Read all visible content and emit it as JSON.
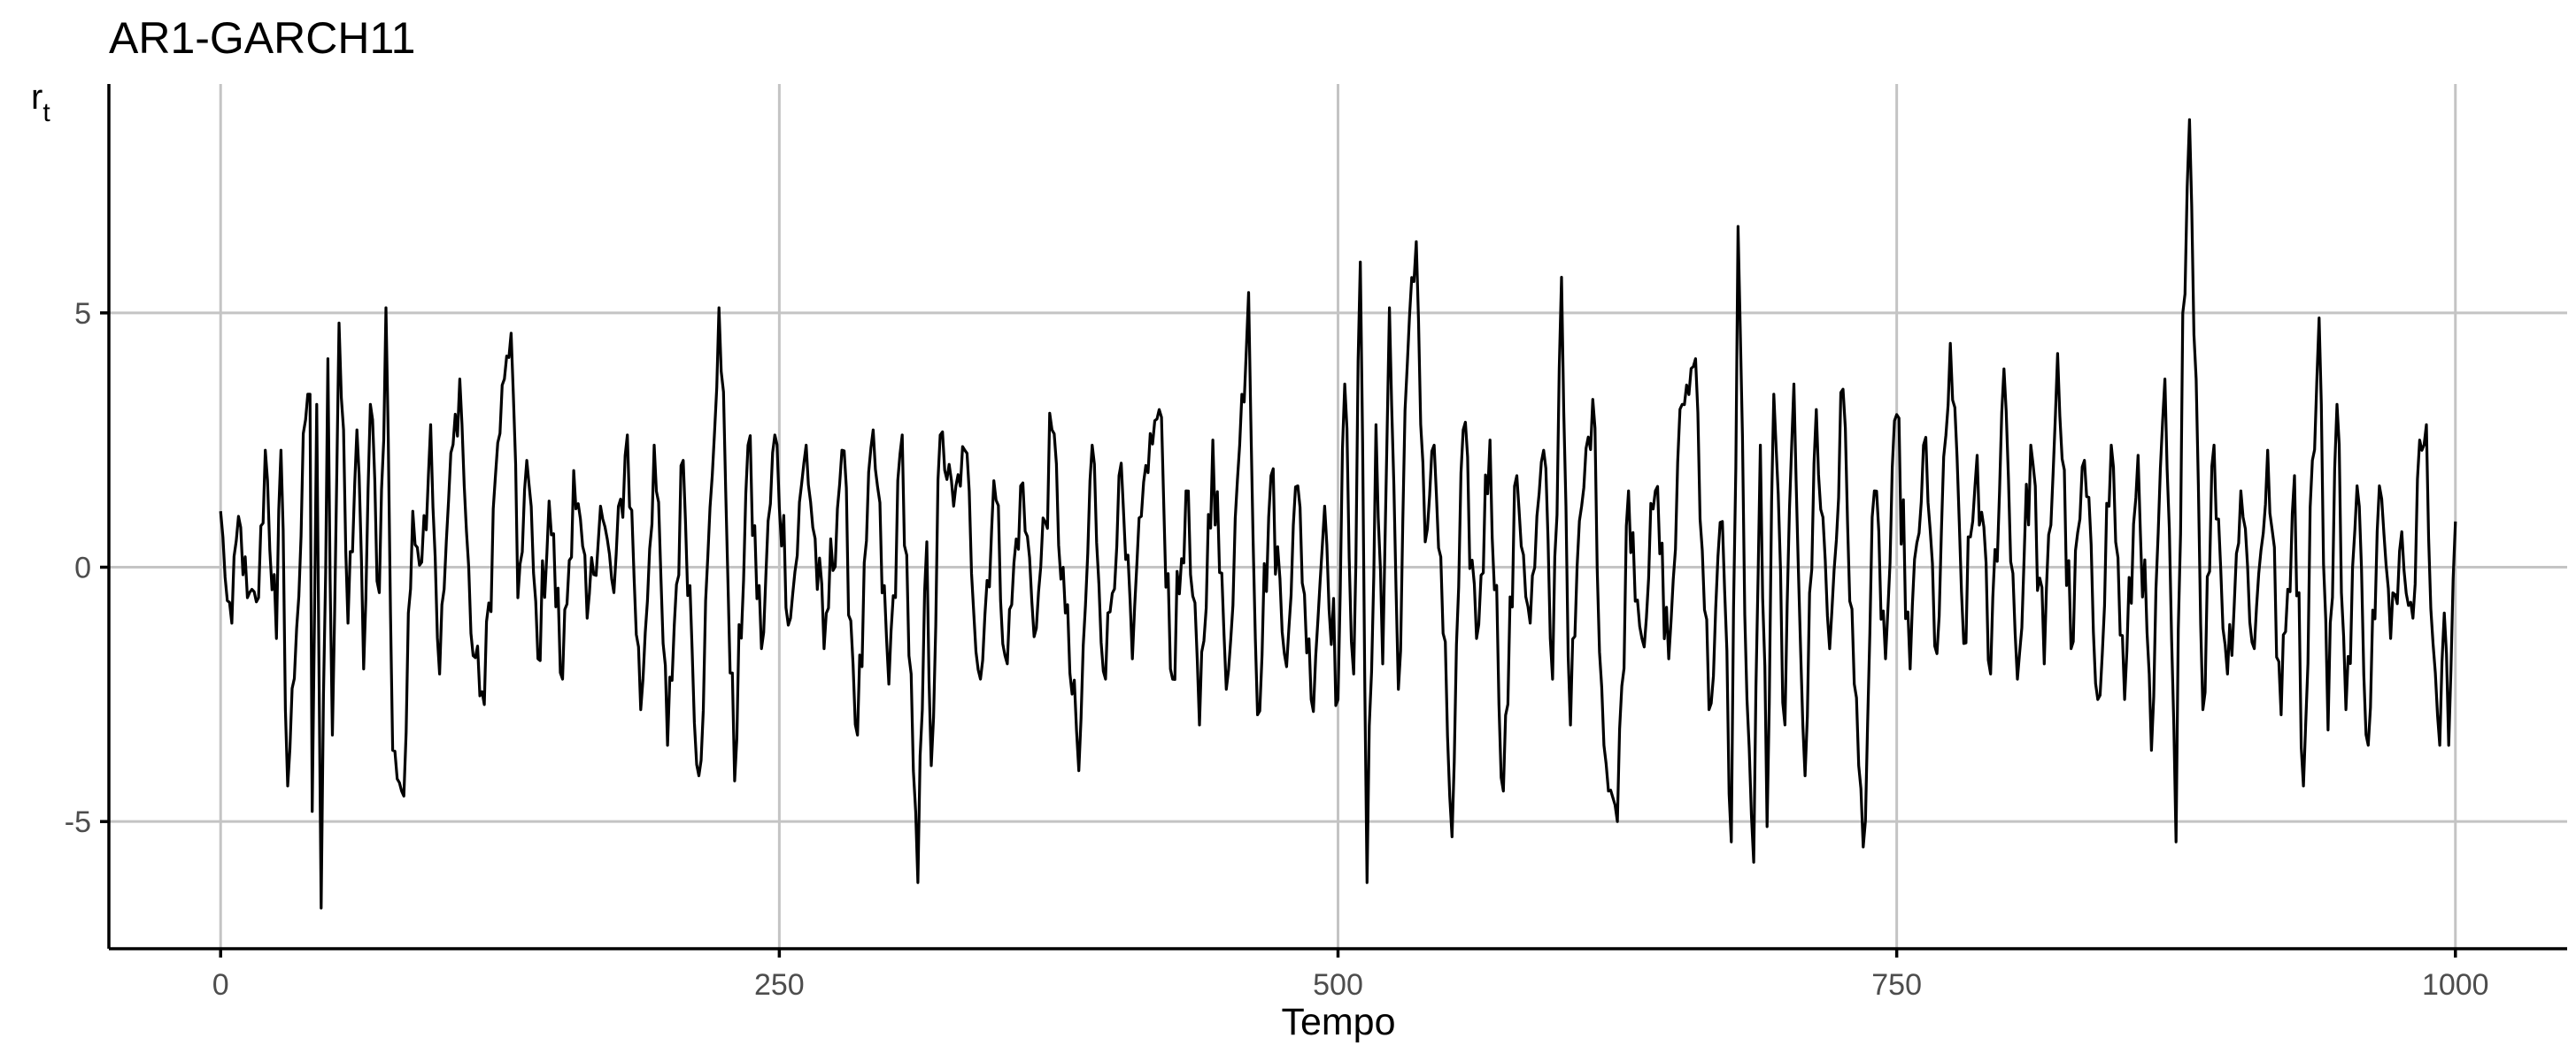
{
  "chart_data": {
    "type": "line",
    "title": "AR1-GARCH11",
    "xlabel": "Tempo",
    "ylabel": "r",
    "ylabel_subscript": "t",
    "xlim": [
      -50,
      1050
    ],
    "ylim": [
      -7.5,
      9.5
    ],
    "x_ticks": [
      0,
      250,
      500,
      750,
      1000
    ],
    "y_ticks": [
      -5,
      0,
      5
    ],
    "x_tick_labels": [
      "0",
      "250",
      "500",
      "750",
      "1000"
    ],
    "y_tick_labels": [
      "-5",
      "0",
      "5"
    ],
    "grid": true,
    "legend": "none",
    "line_color": "#000000",
    "n": 1000,
    "anchors": [
      {
        "x": 0,
        "y": 1.1
      },
      {
        "x": 2,
        "y": -0.2
      },
      {
        "x": 5,
        "y": -1.1
      },
      {
        "x": 8,
        "y": 1.0
      },
      {
        "x": 12,
        "y": -0.6
      },
      {
        "x": 17,
        "y": -0.6
      },
      {
        "x": 20,
        "y": 2.3
      },
      {
        "x": 25,
        "y": -1.4
      },
      {
        "x": 27,
        "y": 2.3
      },
      {
        "x": 30,
        "y": -4.3
      },
      {
        "x": 34,
        "y": -1.2
      },
      {
        "x": 38,
        "y": 2.9
      },
      {
        "x": 40,
        "y": 3.4
      },
      {
        "x": 41,
        "y": -4.8
      },
      {
        "x": 43,
        "y": 3.2
      },
      {
        "x": 45,
        "y": -6.7
      },
      {
        "x": 48,
        "y": 4.1
      },
      {
        "x": 50,
        "y": -3.3
      },
      {
        "x": 53,
        "y": 4.8
      },
      {
        "x": 57,
        "y": -1.1
      },
      {
        "x": 61,
        "y": 2.7
      },
      {
        "x": 64,
        "y": -2.0
      },
      {
        "x": 67,
        "y": 3.2
      },
      {
        "x": 71,
        "y": -0.5
      },
      {
        "x": 74,
        "y": 5.1
      },
      {
        "x": 77,
        "y": -3.6
      },
      {
        "x": 82,
        "y": -4.5
      },
      {
        "x": 86,
        "y": 1.1
      },
      {
        "x": 90,
        "y": 0.1
      },
      {
        "x": 94,
        "y": 2.8
      },
      {
        "x": 98,
        "y": -2.1
      },
      {
        "x": 102,
        "y": 1.3
      },
      {
        "x": 107,
        "y": 3.7
      },
      {
        "x": 112,
        "y": -1.3
      },
      {
        "x": 118,
        "y": -2.7
      },
      {
        "x": 123,
        "y": 1.8
      },
      {
        "x": 127,
        "y": 3.7
      },
      {
        "x": 130,
        "y": 4.6
      },
      {
        "x": 133,
        "y": -0.6
      },
      {
        "x": 137,
        "y": 2.1
      },
      {
        "x": 142,
        "y": -1.8
      },
      {
        "x": 147,
        "y": 1.3
      },
      {
        "x": 153,
        "y": -2.2
      },
      {
        "x": 158,
        "y": 1.9
      },
      {
        "x": 164,
        "y": -1.0
      },
      {
        "x": 170,
        "y": 1.2
      },
      {
        "x": 176,
        "y": -0.5
      },
      {
        "x": 182,
        "y": 2.6
      },
      {
        "x": 188,
        "y": -2.8
      },
      {
        "x": 194,
        "y": 2.4
      },
      {
        "x": 200,
        "y": -3.5
      },
      {
        "x": 207,
        "y": 2.1
      },
      {
        "x": 214,
        "y": -4.1
      },
      {
        "x": 220,
        "y": 1.8
      },
      {
        "x": 223,
        "y": 5.1
      },
      {
        "x": 226,
        "y": 1.5
      },
      {
        "x": 230,
        "y": -4.2
      },
      {
        "x": 236,
        "y": 2.4
      },
      {
        "x": 242,
        "y": -1.6
      },
      {
        "x": 248,
        "y": 2.6
      },
      {
        "x": 255,
        "y": -1.0
      },
      {
        "x": 262,
        "y": 2.4
      },
      {
        "x": 270,
        "y": -1.6
      },
      {
        "x": 278,
        "y": 2.3
      },
      {
        "x": 285,
        "y": -3.3
      },
      {
        "x": 292,
        "y": 2.7
      },
      {
        "x": 299,
        "y": -2.3
      },
      {
        "x": 305,
        "y": 2.6
      },
      {
        "x": 310,
        "y": -4.0
      },
      {
        "x": 312,
        "y": -6.2
      },
      {
        "x": 316,
        "y": 0.5
      },
      {
        "x": 318,
        "y": -3.9
      },
      {
        "x": 322,
        "y": 2.6
      },
      {
        "x": 328,
        "y": 1.2
      },
      {
        "x": 333,
        "y": 2.3
      },
      {
        "x": 340,
        "y": -2.2
      },
      {
        "x": 346,
        "y": 1.7
      },
      {
        "x": 352,
        "y": -1.9
      },
      {
        "x": 358,
        "y": 1.6
      },
      {
        "x": 365,
        "y": -1.2
      },
      {
        "x": 372,
        "y": 2.7
      },
      {
        "x": 378,
        "y": -0.9
      },
      {
        "x": 384,
        "y": -4.0
      },
      {
        "x": 390,
        "y": 2.4
      },
      {
        "x": 396,
        "y": -2.2
      },
      {
        "x": 402,
        "y": 1.8
      },
      {
        "x": 408,
        "y": -1.8
      },
      {
        "x": 414,
        "y": 2.0
      },
      {
        "x": 420,
        "y": 3.1
      },
      {
        "x": 426,
        "y": -2.2
      },
      {
        "x": 432,
        "y": 1.5
      },
      {
        "x": 438,
        "y": -3.1
      },
      {
        "x": 444,
        "y": 2.5
      },
      {
        "x": 450,
        "y": -2.4
      },
      {
        "x": 456,
        "y": 2.4
      },
      {
        "x": 460,
        "y": 5.4
      },
      {
        "x": 464,
        "y": -2.9
      },
      {
        "x": 470,
        "y": 1.8
      },
      {
        "x": 476,
        "y": -1.7
      },
      {
        "x": 482,
        "y": 1.6
      },
      {
        "x": 488,
        "y": -2.6
      },
      {
        "x": 494,
        "y": 1.2
      },
      {
        "x": 500,
        "y": -2.6
      },
      {
        "x": 503,
        "y": 3.6
      },
      {
        "x": 507,
        "y": -2.1
      },
      {
        "x": 510,
        "y": 6.0
      },
      {
        "x": 513,
        "y": -6.2
      },
      {
        "x": 517,
        "y": 2.8
      },
      {
        "x": 520,
        "y": -1.9
      },
      {
        "x": 523,
        "y": 5.1
      },
      {
        "x": 527,
        "y": -2.4
      },
      {
        "x": 531,
        "y": 4.0
      },
      {
        "x": 535,
        "y": 6.4
      },
      {
        "x": 539,
        "y": 0.5
      },
      {
        "x": 543,
        "y": 2.4
      },
      {
        "x": 547,
        "y": -1.3
      },
      {
        "x": 551,
        "y": -5.3
      },
      {
        "x": 556,
        "y": 2.7
      },
      {
        "x": 562,
        "y": -1.4
      },
      {
        "x": 568,
        "y": 2.5
      },
      {
        "x": 574,
        "y": -4.4
      },
      {
        "x": 580,
        "y": 1.8
      },
      {
        "x": 586,
        "y": -1.1
      },
      {
        "x": 592,
        "y": 2.3
      },
      {
        "x": 596,
        "y": -2.2
      },
      {
        "x": 600,
        "y": 5.7
      },
      {
        "x": 604,
        "y": -3.1
      },
      {
        "x": 609,
        "y": 1.2
      },
      {
        "x": 614,
        "y": 3.3
      },
      {
        "x": 619,
        "y": -3.5
      },
      {
        "x": 625,
        "y": -5.0
      },
      {
        "x": 630,
        "y": 1.5
      },
      {
        "x": 636,
        "y": -1.4
      },
      {
        "x": 642,
        "y": 1.5
      },
      {
        "x": 648,
        "y": -1.8
      },
      {
        "x": 654,
        "y": 3.2
      },
      {
        "x": 660,
        "y": 4.1
      },
      {
        "x": 666,
        "y": -2.8
      },
      {
        "x": 672,
        "y": 0.9
      },
      {
        "x": 676,
        "y": -5.4
      },
      {
        "x": 679,
        "y": 6.7
      },
      {
        "x": 683,
        "y": -2.6
      },
      {
        "x": 686,
        "y": -5.8
      },
      {
        "x": 689,
        "y": 2.4
      },
      {
        "x": 692,
        "y": -5.1
      },
      {
        "x": 695,
        "y": 3.4
      },
      {
        "x": 700,
        "y": -3.1
      },
      {
        "x": 704,
        "y": 3.6
      },
      {
        "x": 709,
        "y": -4.1
      },
      {
        "x": 714,
        "y": 3.1
      },
      {
        "x": 720,
        "y": -1.6
      },
      {
        "x": 726,
        "y": 3.5
      },
      {
        "x": 731,
        "y": -2.3
      },
      {
        "x": 735,
        "y": -5.5
      },
      {
        "x": 740,
        "y": 1.5
      },
      {
        "x": 745,
        "y": -1.8
      },
      {
        "x": 750,
        "y": 3.0
      },
      {
        "x": 756,
        "y": -2.0
      },
      {
        "x": 762,
        "y": 2.4
      },
      {
        "x": 768,
        "y": -1.7
      },
      {
        "x": 774,
        "y": 4.4
      },
      {
        "x": 780,
        "y": -1.5
      },
      {
        "x": 786,
        "y": 2.2
      },
      {
        "x": 792,
        "y": -2.1
      },
      {
        "x": 798,
        "y": 3.9
      },
      {
        "x": 804,
        "y": -2.2
      },
      {
        "x": 810,
        "y": 2.4
      },
      {
        "x": 816,
        "y": -1.9
      },
      {
        "x": 822,
        "y": 4.2
      },
      {
        "x": 828,
        "y": -1.6
      },
      {
        "x": 834,
        "y": 2.1
      },
      {
        "x": 840,
        "y": -2.6
      },
      {
        "x": 846,
        "y": 2.4
      },
      {
        "x": 852,
        "y": -2.6
      },
      {
        "x": 858,
        "y": 2.2
      },
      {
        "x": 864,
        "y": -3.6
      },
      {
        "x": 870,
        "y": 3.7
      },
      {
        "x": 875,
        "y": -5.4
      },
      {
        "x": 878,
        "y": 5.0
      },
      {
        "x": 881,
        "y": 8.8
      },
      {
        "x": 884,
        "y": 3.7
      },
      {
        "x": 887,
        "y": -2.8
      },
      {
        "x": 892,
        "y": 2.4
      },
      {
        "x": 898,
        "y": -2.1
      },
      {
        "x": 904,
        "y": 1.5
      },
      {
        "x": 910,
        "y": -1.6
      },
      {
        "x": 916,
        "y": 2.3
      },
      {
        "x": 922,
        "y": -2.9
      },
      {
        "x": 928,
        "y": 1.8
      },
      {
        "x": 932,
        "y": -4.3
      },
      {
        "x": 936,
        "y": 2.1
      },
      {
        "x": 939,
        "y": 4.9
      },
      {
        "x": 943,
        "y": -3.2
      },
      {
        "x": 947,
        "y": 3.2
      },
      {
        "x": 951,
        "y": -2.8
      },
      {
        "x": 956,
        "y": 1.6
      },
      {
        "x": 961,
        "y": -3.5
      },
      {
        "x": 966,
        "y": 1.6
      },
      {
        "x": 971,
        "y": -1.4
      },
      {
        "x": 976,
        "y": 0.7
      },
      {
        "x": 981,
        "y": -1.0
      },
      {
        "x": 984,
        "y": 2.5
      },
      {
        "x": 987,
        "y": 2.8
      },
      {
        "x": 990,
        "y": -1.5
      },
      {
        "x": 993,
        "y": -3.5
      },
      {
        "x": 995,
        "y": -0.9
      },
      {
        "x": 997,
        "y": -3.5
      },
      {
        "x": 1000,
        "y": 0.9
      }
    ]
  }
}
